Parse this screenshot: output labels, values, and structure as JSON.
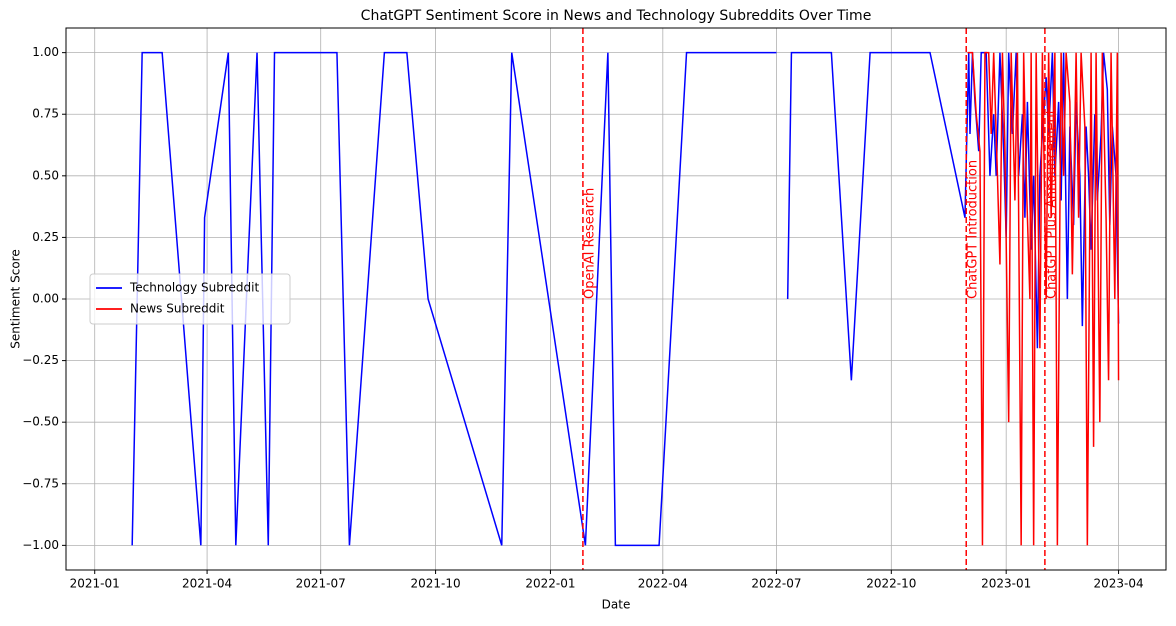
{
  "chart_data": {
    "type": "line",
    "title": "ChatGPT Sentiment Score in News and Technology Subreddits Over Time",
    "x_label": "Date",
    "y_label": "Sentiment Score",
    "grid": true,
    "legend": "center left",
    "xlim": [
      "2020-12-09",
      "2023-05-09"
    ],
    "xticks": [
      "2021-01",
      "2021-04",
      "2021-07",
      "2021-10",
      "2022-01",
      "2022-04",
      "2022-07",
      "2022-10",
      "2023-01",
      "2023-04"
    ],
    "ylim": [
      -1.1,
      1.1
    ],
    "yticks": [
      {
        "value": -1,
        "label": "−1.00"
      },
      {
        "value": -0.75,
        "label": "−0.75"
      },
      {
        "value": -0.5,
        "label": "−0.50"
      },
      {
        "value": -0.25,
        "label": "−0.25"
      },
      {
        "value": 0,
        "label": "0.00"
      },
      {
        "value": 0.25,
        "label": "0.25"
      },
      {
        "value": 0.5,
        "label": "0.50"
      },
      {
        "value": 0.75,
        "label": "0.75"
      },
      {
        "value": 1,
        "label": "1.00"
      }
    ],
    "series": [
      {
        "name": "Technology Subreddit",
        "color": "#0000ff",
        "x": [
          "2021-01-31",
          "2021-02-08",
          "2021-02-24",
          "2021-03-27",
          "2021-03-30",
          "2021-04-18",
          "2021-04-24",
          "2021-05-11",
          "2021-05-20",
          "2021-05-25",
          "2021-07-14",
          "2021-07-24",
          "2021-08-21",
          "2021-09-08",
          "2021-09-25",
          "2021-11-23",
          "2021-12-01",
          "2022-01-29",
          "2022-02-16",
          "2022-02-22",
          "2022-03-29",
          "2022-04-20",
          "2022-07-01",
          "2022-07-05",
          "2022-07-10",
          "2022-07-13",
          "2022-08-14",
          "2022-08-30",
          "2022-09-14",
          "2022-11-01",
          "2022-11-29",
          "2022-12-02",
          "2022-12-03",
          "2022-12-05",
          "2022-12-07",
          "2022-12-10",
          "2022-12-12",
          "2022-12-16",
          "2022-12-19",
          "2022-12-22",
          "2022-12-24",
          "2022-12-27",
          "2022-12-30",
          "2023-01-01",
          "2023-01-03",
          "2023-01-06",
          "2023-01-09",
          "2023-01-11",
          "2023-01-14",
          "2023-01-16",
          "2023-01-18",
          "2023-01-21",
          "2023-01-23",
          "2023-01-26",
          "2023-01-28",
          "2023-01-31",
          "2023-02-02",
          "2023-02-04",
          "2023-02-07",
          "2023-02-09",
          "2023-02-12",
          "2023-02-14",
          "2023-02-16",
          "2023-02-19",
          "2023-02-21",
          "2023-02-24",
          "2023-02-26",
          "2023-03-01",
          "2023-03-03",
          "2023-03-06",
          "2023-03-08",
          "2023-03-10",
          "2023-03-13",
          "2023-03-15",
          "2023-03-18",
          "2023-03-20",
          "2023-03-23",
          "2023-03-25",
          "2023-03-27",
          "2023-03-30",
          "2023-04-01"
        ],
        "values": [
          -1,
          1,
          1,
          -1,
          0.33,
          1,
          -1,
          1,
          -1,
          1,
          1,
          -1,
          1,
          1,
          0,
          -1,
          1,
          -1,
          1,
          -1,
          -1,
          1,
          1,
          null,
          0,
          1,
          1,
          -0.33,
          1,
          1,
          0.33,
          1,
          0.67,
          1,
          0.8,
          0.6,
          1,
          1,
          0.5,
          0.75,
          0.5,
          1,
          0.6,
          0.25,
          1,
          0.67,
          1,
          0.5,
          0.75,
          0.33,
          0.8,
          0.2,
          0.5,
          -0.2,
          0.5,
          0.75,
          0.9,
          0.67,
          1,
          0.5,
          0.8,
          0.4,
          1,
          0,
          0.7,
          0.3,
          0.8,
          0.5,
          -0.11,
          0.7,
          0.5,
          0.2,
          0.75,
          0.4,
          0.67,
          1,
          0.85,
          0.3,
          0.7,
          0.5,
          -0.1
        ]
      },
      {
        "name": "News Subreddit",
        "color": "#ff0000",
        "x": [
          "2022-12-01",
          "2022-12-03",
          "2022-12-05",
          "2022-12-08",
          "2022-12-11",
          "2022-12-13",
          "2022-12-15",
          "2022-12-18",
          "2022-12-20",
          "2022-12-22",
          "2022-12-25",
          "2022-12-27",
          "2022-12-29",
          "2022-12-31",
          "2023-01-03",
          "2023-01-05",
          "2023-01-08",
          "2023-01-10",
          "2023-01-13",
          "2023-01-15",
          "2023-01-17",
          "2023-01-20",
          "2023-01-21",
          "2023-01-23",
          "2023-01-25",
          "2023-01-28",
          "2023-01-30",
          "2023-02-02",
          "2023-02-04",
          "2023-02-06",
          "2023-02-09",
          "2023-02-11",
          "2023-02-14",
          "2023-02-16",
          "2023-02-18",
          "2023-02-21",
          "2023-02-23",
          "2023-02-26",
          "2023-02-28",
          "2023-03-02",
          "2023-03-05",
          "2023-03-07",
          "2023-03-10",
          "2023-03-12",
          "2023-03-14",
          "2023-03-17",
          "2023-03-19",
          "2023-03-22",
          "2023-03-24",
          "2023-03-26",
          "2023-03-29",
          "2023-03-31",
          "2023-04-01"
        ],
        "values": [
          1,
          1,
          1,
          0.75,
          0.6,
          -1,
          1,
          1,
          0.67,
          1,
          0.5,
          0.14,
          1,
          0.6,
          -0.5,
          1,
          0.4,
          1,
          -1,
          1,
          0.5,
          0,
          1,
          -1,
          1,
          -0.2,
          1,
          0,
          1,
          0.33,
          1,
          -1,
          1,
          0.5,
          1,
          0.8,
          0.1,
          1,
          0.33,
          1,
          0.7,
          -1,
          1,
          -0.6,
          1,
          -0.5,
          1,
          0.33,
          -0.33,
          1,
          0,
          1,
          -0.33
        ]
      }
    ],
    "annotations": [
      {
        "x": "2022-01-27",
        "label": "OpenAI Research",
        "color": "#ff0000"
      },
      {
        "x": "2022-11-30",
        "label": "ChatGPT Introduction",
        "color": "#ff0000"
      },
      {
        "x": "2023-02-01",
        "label": "ChatGPT Plus Announcement",
        "color": "#ff0000"
      }
    ]
  }
}
